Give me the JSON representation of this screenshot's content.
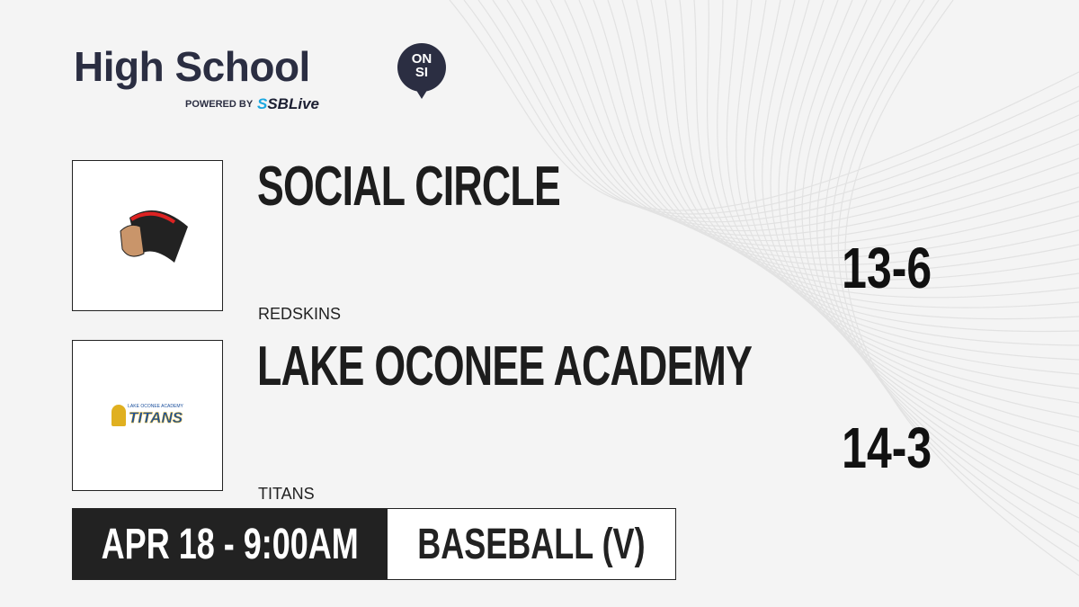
{
  "brand": {
    "title": "High School",
    "badge_top": "ON",
    "badge_bottom": "SI",
    "powered_by": "POWERED BY",
    "partner": "SBLive",
    "partner_mark": "S"
  },
  "teams": [
    {
      "name": "SOCIAL CIRCLE",
      "mascot": "REDSKINS",
      "record": "13-6",
      "logo_text": ""
    },
    {
      "name": "LAKE OCONEE ACADEMY",
      "mascot": "TITANS",
      "record": "14-3",
      "logo_text": "LAKE OCONEE ACADEMY",
      "logo_word": "TITANS"
    }
  ],
  "game": {
    "datetime": "APR 18 - 9:00AM",
    "sport": "BASEBALL (V)"
  },
  "colors": {
    "brand": "#2b2e42",
    "accent": "#1aa7e0",
    "dark": "#222222"
  }
}
